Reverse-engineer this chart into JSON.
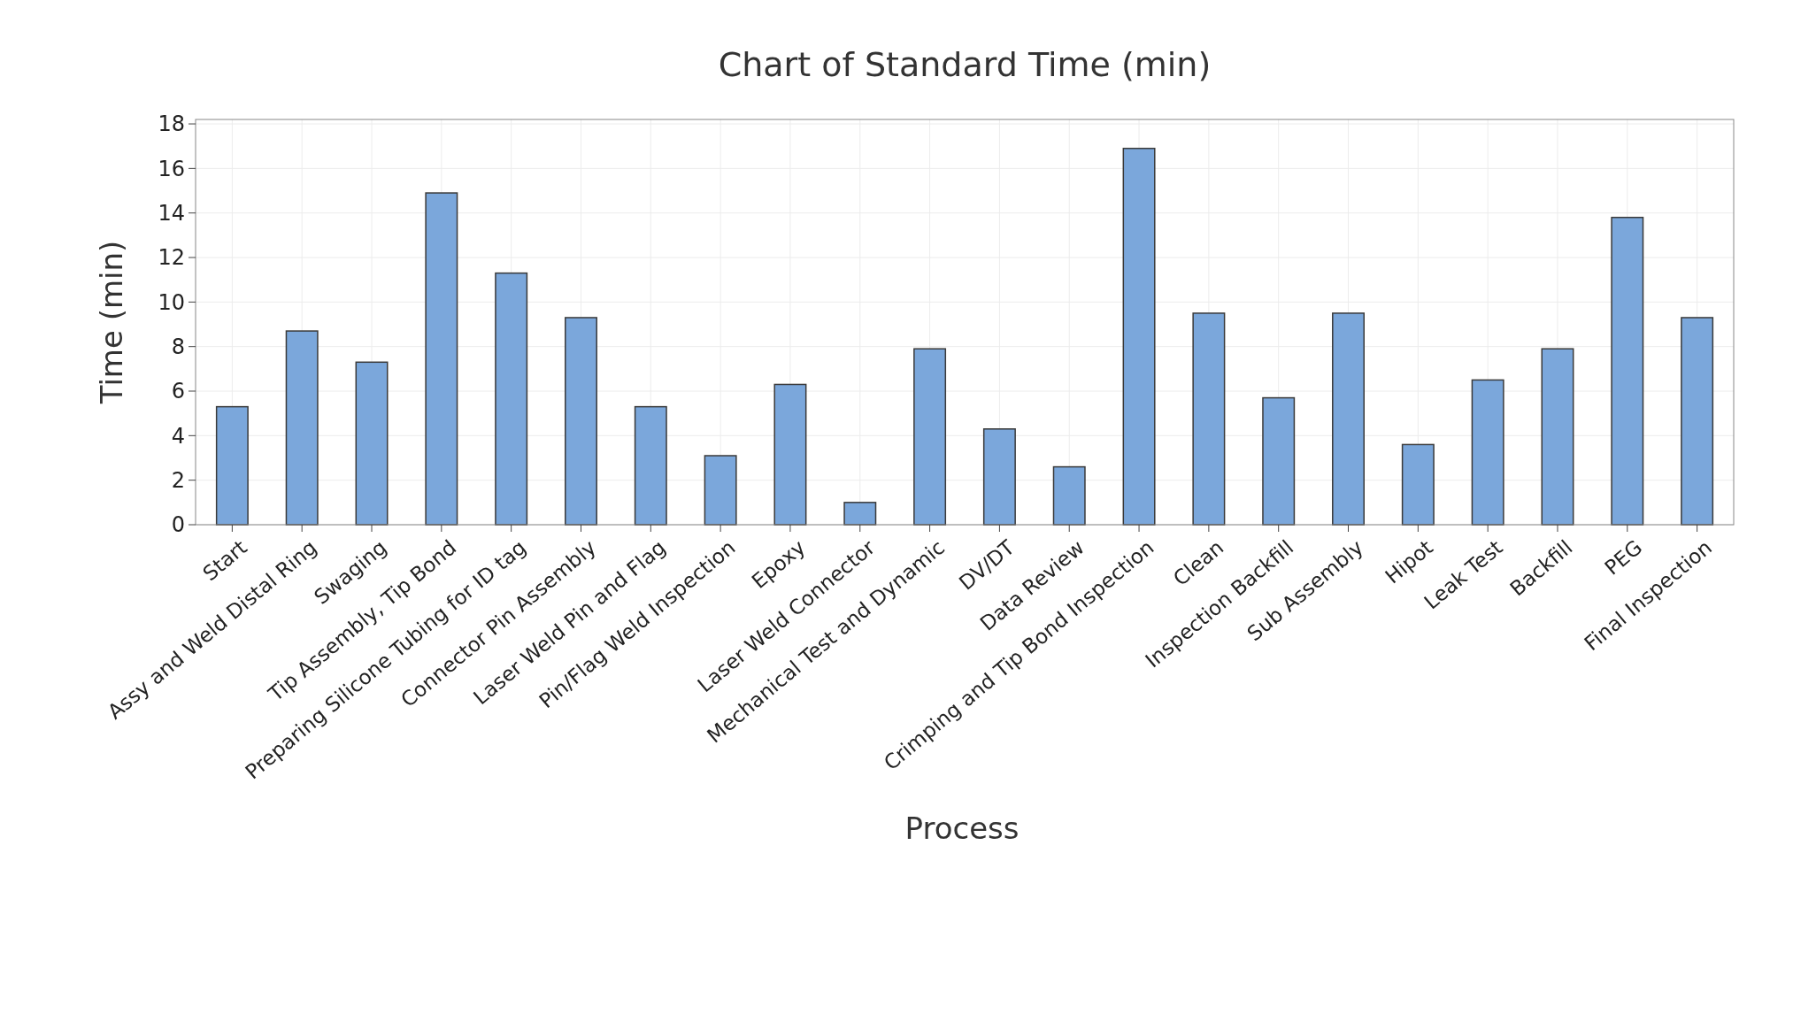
{
  "chart_data": {
    "type": "bar",
    "title": "Chart of Standard Time (min)",
    "xlabel": "Process",
    "ylabel": "Time (min)",
    "categories": [
      "Start",
      "Assy and Weld Distal Ring",
      "Swaging",
      "Tip Assembly, Tip Bond",
      "Preparing Silicone Tubing for ID tag",
      "Connector Pin Assembly",
      "Laser Weld Pin and Flag",
      "Pin/Flag Weld Inspection",
      "Epoxy",
      "Laser Weld Connector",
      "Mechanical Test and Dynamic",
      "DV/DT",
      "Data Review",
      "Crimping and Tip Bond Inspection",
      "Clean",
      "Inspection Backfill",
      "Sub Assembly",
      "Hipot",
      "Leak Test",
      "Backfill",
      "PEG",
      "Final Inspection"
    ],
    "values": [
      5.3,
      8.7,
      7.3,
      14.9,
      11.3,
      9.3,
      5.3,
      3.1,
      6.3,
      1.0,
      7.9,
      4.3,
      2.6,
      16.9,
      9.5,
      5.7,
      9.5,
      3.6,
      6.5,
      7.9,
      13.8,
      9.3
    ],
    "color": "#7ba7db",
    "ylim": [
      0,
      18.2
    ],
    "yticks": [
      0,
      2,
      4,
      6,
      8,
      10,
      12,
      14,
      16,
      18
    ],
    "grid": true
  }
}
